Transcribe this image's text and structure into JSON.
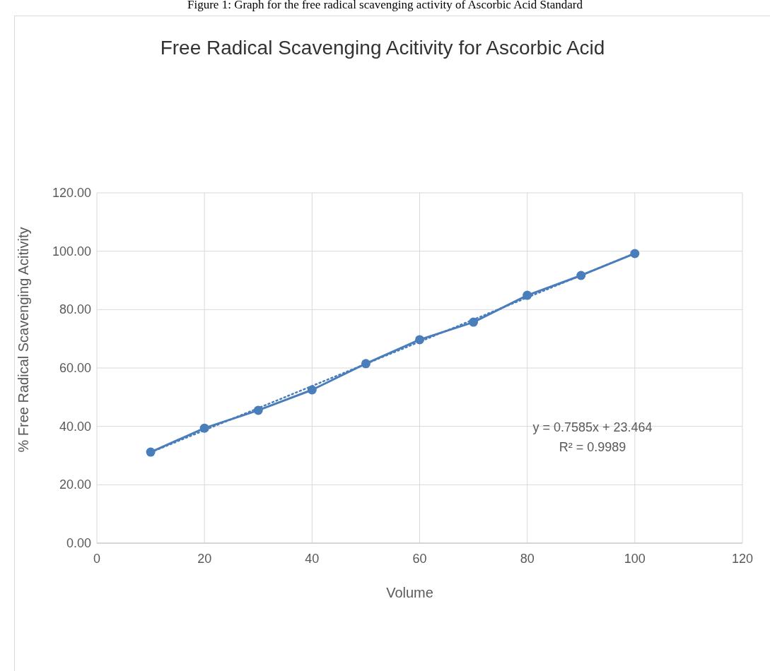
{
  "chart_data": {
    "type": "line",
    "title": "Free Radical Scavenging Acitivity for Ascorbic Acid",
    "xlabel": "Volume",
    "ylabel": "% Free Radical Scavenging Acitivity",
    "x": [
      10,
      20,
      30,
      40,
      50,
      60,
      70,
      80,
      90,
      100
    ],
    "series": [
      {
        "color": "#4a7ebb",
        "values": [
          31.2,
          39.4,
          45.5,
          52.5,
          61.5,
          69.7,
          75.7,
          84.9,
          91.7,
          99.2
        ],
        "marker": "circle",
        "line_style": "solid"
      },
      {
        "type": "line",
        "x": [
          10,
          100
        ],
        "color": "#4a7ebb",
        "values": [
          31.1,
          99.3
        ],
        "marker": "none",
        "line_style": "dotted"
      }
    ],
    "xlim": [
      0,
      120
    ],
    "xticks": [
      0,
      20,
      40,
      60,
      80,
      100,
      120
    ],
    "ylim": [
      0,
      120
    ],
    "yticks": [
      {
        "value": 0,
        "label": "0.00"
      },
      {
        "value": 20,
        "label": "20.00"
      },
      {
        "value": 40,
        "label": "40.00"
      },
      {
        "value": 60,
        "label": "60.00"
      },
      {
        "value": 80,
        "label": "80.00"
      },
      {
        "value": 100,
        "label": "100.00"
      },
      {
        "value": 120,
        "label": "120.00"
      }
    ],
    "grid": true,
    "annotations": [
      "Figure 1: Graph for the free radical scavenging activity of Ascorbic Acid Standard",
      "y = 0.7585x + 23.464",
      "R² = 0.9989"
    ]
  }
}
